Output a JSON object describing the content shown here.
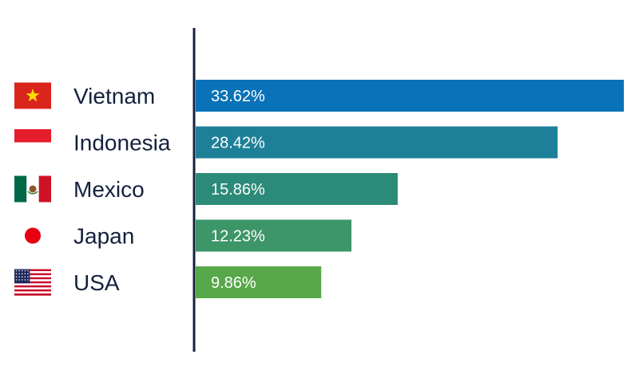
{
  "chart_data": {
    "type": "bar",
    "orientation": "horizontal",
    "categories": [
      "Vietnam",
      "Indonesia",
      "Mexico",
      "Japan",
      "USA"
    ],
    "values": [
      33.62,
      28.42,
      15.86,
      12.23,
      9.86
    ],
    "value_labels": [
      "33.62%",
      "28.42%",
      "15.86%",
      "12.23%",
      "9.86%"
    ],
    "bar_colors": [
      "#0a72b8",
      "#1d8098",
      "#2c8a78",
      "#3d9668",
      "#58a84a"
    ],
    "flag_icons": [
      "vietnam-flag-icon",
      "indonesia-flag-icon",
      "mexico-flag-icon",
      "japan-flag-icon",
      "usa-flag-icon"
    ],
    "title": "",
    "xlabel": "",
    "ylabel": "",
    "xlim": [
      0,
      33.62
    ],
    "grid": false,
    "legend": "none"
  }
}
